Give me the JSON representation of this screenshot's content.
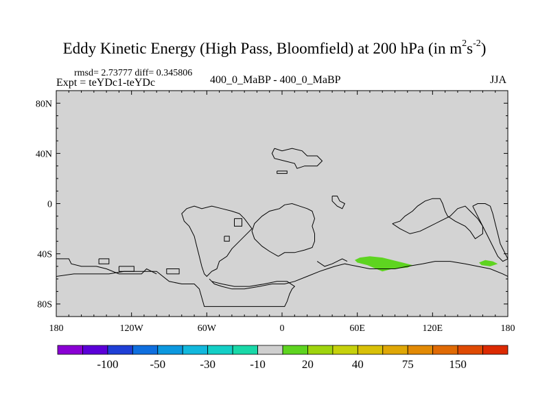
{
  "header": {
    "title_main": "Eddy Kinetic Energy (High Pass, Bloomfield) at 200 hPa (in m",
    "title_sup1": "2",
    "title_s": "s",
    "title_sup2": "-2",
    "title_close": ")",
    "rmsd": "rmsd= 2.73777 diff= 0.345806",
    "expt": "Expt = teYDc1-teYDc",
    "center_label": "400_0_MaBP - 400_0_MaBP",
    "season": "JJA"
  },
  "colors": {
    "land_fill": "#d3d3d3",
    "frame": "#000000"
  },
  "chart_data": {
    "type": "heatmap",
    "title": "Eddy Kinetic Energy (High Pass, Bloomfield) at 200 hPa (in m2s-2)",
    "xlabel": "",
    "ylabel": "",
    "xlim": [
      -180,
      180
    ],
    "ylim": [
      -90,
      90
    ],
    "x_ticks": [
      {
        "value": -180,
        "label": "180"
      },
      {
        "value": -120,
        "label": "120W"
      },
      {
        "value": -60,
        "label": "60W"
      },
      {
        "value": 0,
        "label": "0"
      },
      {
        "value": 60,
        "label": "60E"
      },
      {
        "value": 120,
        "label": "120E"
      },
      {
        "value": 180,
        "label": "180"
      }
    ],
    "y_ticks": [
      {
        "value": 80,
        "label": "80N"
      },
      {
        "value": 40,
        "label": "40N"
      },
      {
        "value": 0,
        "label": "0"
      },
      {
        "value": -40,
        "label": "40S"
      },
      {
        "value": -80,
        "label": "80S"
      }
    ],
    "colorbar": {
      "colors": [
        "#8a00d4",
        "#5b00d8",
        "#1f3fd6",
        "#0f6fdf",
        "#0c98df",
        "#12b8dd",
        "#14cfc6",
        "#19d8a8",
        "#cfcfcf",
        "#5ed420",
        "#9fd40e",
        "#c6d10c",
        "#d8c008",
        "#dfa706",
        "#e28a05",
        "#e06a04",
        "#df4a03",
        "#dc2a02"
      ],
      "labels": [
        {
          "boundary": 2,
          "text": "-100"
        },
        {
          "boundary": 4,
          "text": "-50"
        },
        {
          "boundary": 6,
          "text": "-30"
        },
        {
          "boundary": 8,
          "text": "-10"
        },
        {
          "boundary": 10,
          "text": "20"
        },
        {
          "boundary": 12,
          "text": "40"
        },
        {
          "boundary": 14,
          "text": "75"
        },
        {
          "boundary": 16,
          "text": "150"
        }
      ]
    },
    "anomalies": [
      {
        "name": "south-atlantic-indian-blob",
        "level": "10 to 20",
        "color": "#5ed420",
        "outline": [
          [
            58,
            -45
          ],
          [
            62,
            -43
          ],
          [
            70,
            -42
          ],
          [
            80,
            -43
          ],
          [
            88,
            -45
          ],
          [
            96,
            -47
          ],
          [
            104,
            -49
          ],
          [
            100,
            -51
          ],
          [
            88,
            -52
          ],
          [
            80,
            -54
          ],
          [
            75,
            -52
          ],
          [
            68,
            -49
          ],
          [
            60,
            -47
          ]
        ]
      },
      {
        "name": "south-pacific-blob",
        "level": "10 to 20",
        "color": "#5ed420",
        "outline": [
          [
            157,
            -47
          ],
          [
            162,
            -45
          ],
          [
            168,
            -46
          ],
          [
            172,
            -48
          ],
          [
            166,
            -50
          ],
          [
            159,
            -49
          ]
        ]
      }
    ],
    "coastlines": [
      [
        [
          -3,
          -42
        ],
        [
          2,
          -39
        ],
        [
          10,
          -39
        ],
        [
          18,
          -37
        ],
        [
          24,
          -35
        ],
        [
          26,
          -30
        ],
        [
          26,
          -24
        ],
        [
          24,
          -18
        ],
        [
          26,
          -12
        ],
        [
          24,
          -6
        ],
        [
          20,
          -4
        ],
        [
          14,
          -2
        ],
        [
          8,
          0
        ],
        [
          2,
          -1
        ],
        [
          -2,
          -4
        ],
        [
          -10,
          -6
        ],
        [
          -16,
          -10
        ],
        [
          -22,
          -16
        ],
        [
          -24,
          -22
        ],
        [
          -22,
          -28
        ],
        [
          -16,
          -34
        ],
        [
          -10,
          -38
        ],
        [
          -3,
          -42
        ]
      ],
      [
        [
          -34,
          -8
        ],
        [
          -30,
          -12
        ],
        [
          -24,
          -20
        ],
        [
          -32,
          -28
        ],
        [
          -40,
          -36
        ],
        [
          -44,
          -42
        ],
        [
          -50,
          -46
        ],
        [
          -52,
          -52
        ],
        [
          -56,
          -54
        ],
        [
          -60,
          -58
        ],
        [
          -62,
          -56
        ],
        [
          -64,
          -50
        ],
        [
          -66,
          -42
        ],
        [
          -68,
          -34
        ],
        [
          -70,
          -26
        ],
        [
          -74,
          -18
        ],
        [
          -78,
          -14
        ],
        [
          -80,
          -8
        ],
        [
          -76,
          -4
        ],
        [
          -70,
          -2
        ],
        [
          -64,
          -4
        ],
        [
          -56,
          -2
        ],
        [
          -48,
          -4
        ],
        [
          -40,
          -6
        ],
        [
          -34,
          -8
        ]
      ],
      [
        [
          -58,
          -60
        ],
        [
          -54,
          -64
        ],
        [
          -48,
          -66
        ],
        [
          -40,
          -68
        ],
        [
          -30,
          -68
        ],
        [
          -18,
          -66
        ],
        [
          -8,
          -64
        ],
        [
          2,
          -64
        ],
        [
          10,
          -62
        ],
        [
          20,
          -58
        ],
        [
          30,
          -54
        ],
        [
          36,
          -52
        ],
        [
          42,
          -50
        ],
        [
          50,
          -48
        ],
        [
          60,
          -50
        ],
        [
          70,
          -52
        ],
        [
          80,
          -52
        ],
        [
          90,
          -52
        ],
        [
          100,
          -50
        ],
        [
          112,
          -48
        ],
        [
          122,
          -46
        ],
        [
          134,
          -46
        ],
        [
          146,
          -48
        ],
        [
          156,
          -50
        ],
        [
          166,
          -52
        ],
        [
          176,
          -56
        ],
        [
          180,
          -58
        ],
        [
          180,
          -90
        ],
        [
          -180,
          -90
        ],
        [
          -180,
          -58
        ],
        [
          -166,
          -56
        ],
        [
          -150,
          -56
        ],
        [
          -138,
          -56
        ],
        [
          -126,
          -54
        ],
        [
          -112,
          -54
        ],
        [
          -100,
          -54
        ],
        [
          -90,
          -62
        ],
        [
          -80,
          -64
        ],
        [
          -70,
          -64
        ],
        [
          -66,
          -68
        ],
        [
          -62,
          -82
        ],
        [
          2,
          -82
        ],
        [
          4,
          -78
        ],
        [
          6,
          -72
        ],
        [
          8,
          -68
        ],
        [
          10,
          -66
        ],
        [
          4,
          -62
        ],
        [
          -4,
          -62
        ],
        [
          -14,
          -64
        ],
        [
          -26,
          -66
        ],
        [
          -38,
          -66
        ],
        [
          -48,
          -64
        ],
        [
          -56,
          -62
        ],
        [
          -58,
          -60
        ]
      ],
      [
        [
          88,
          -16
        ],
        [
          94,
          -14
        ],
        [
          98,
          -10
        ],
        [
          104,
          -6
        ],
        [
          108,
          -2
        ],
        [
          114,
          2
        ],
        [
          120,
          4
        ],
        [
          126,
          4
        ],
        [
          128,
          0
        ],
        [
          130,
          -6
        ],
        [
          132,
          -10
        ],
        [
          138,
          -14
        ],
        [
          146,
          -18
        ],
        [
          150,
          -22
        ],
        [
          154,
          -28
        ],
        [
          160,
          -24
        ],
        [
          160,
          -18
        ],
        [
          156,
          -12
        ],
        [
          150,
          -6
        ],
        [
          146,
          -2
        ],
        [
          140,
          -4
        ],
        [
          134,
          -10
        ],
        [
          126,
          -14
        ],
        [
          118,
          -18
        ],
        [
          110,
          -22
        ],
        [
          102,
          -24
        ],
        [
          94,
          -20
        ],
        [
          88,
          -16
        ]
      ],
      [
        [
          152,
          -2
        ],
        [
          156,
          0
        ],
        [
          162,
          0
        ],
        [
          166,
          -2
        ],
        [
          168,
          -8
        ],
        [
          170,
          -16
        ],
        [
          172,
          -24
        ],
        [
          174,
          -32
        ],
        [
          178,
          -40
        ],
        [
          180,
          -44
        ],
        [
          176,
          -46
        ],
        [
          172,
          -42
        ],
        [
          168,
          -34
        ],
        [
          164,
          -26
        ],
        [
          160,
          -18
        ],
        [
          156,
          -10
        ],
        [
          152,
          -2
        ]
      ],
      [
        [
          -38,
          -12
        ],
        [
          -32,
          -12
        ],
        [
          -32,
          -18
        ],
        [
          -38,
          -18
        ],
        [
          -38,
          -12
        ]
      ],
      [
        [
          -46,
          -26
        ],
        [
          -42,
          -26
        ],
        [
          -42,
          -30
        ],
        [
          -46,
          -30
        ],
        [
          -46,
          -26
        ]
      ],
      [
        [
          -6,
          44
        ],
        [
          0,
          42
        ],
        [
          8,
          44
        ],
        [
          16,
          42
        ],
        [
          20,
          38
        ],
        [
          28,
          38
        ],
        [
          32,
          34
        ],
        [
          28,
          30
        ],
        [
          18,
          30
        ],
        [
          12,
          28
        ],
        [
          10,
          32
        ],
        [
          2,
          34
        ],
        [
          -6,
          36
        ],
        [
          -8,
          40
        ],
        [
          -6,
          44
        ]
      ],
      [
        [
          -4,
          26
        ],
        [
          4,
          26
        ],
        [
          4,
          24
        ],
        [
          -4,
          24
        ],
        [
          -4,
          26
        ]
      ],
      [
        [
          40,
          6
        ],
        [
          44,
          6
        ],
        [
          46,
          2
        ],
        [
          50,
          0
        ],
        [
          48,
          -4
        ],
        [
          44,
          -2
        ],
        [
          40,
          2
        ],
        [
          40,
          6
        ]
      ],
      [
        [
          -180,
          -44
        ],
        [
          -170,
          -44
        ],
        [
          -168,
          -48
        ],
        [
          -160,
          -50
        ],
        [
          -148,
          -50
        ],
        [
          -140,
          -52
        ],
        [
          -130,
          -56
        ],
        [
          -112,
          -56
        ],
        [
          -108,
          -52
        ],
        [
          -100,
          -56
        ]
      ],
      [
        [
          -146,
          -44
        ],
        [
          -138,
          -44
        ],
        [
          -138,
          -48
        ],
        [
          -146,
          -48
        ],
        [
          -146,
          -44
        ]
      ],
      [
        [
          -130,
          -50
        ],
        [
          -118,
          -50
        ],
        [
          -118,
          -54
        ],
        [
          -130,
          -54
        ],
        [
          -130,
          -50
        ]
      ],
      [
        [
          -92,
          -56
        ],
        [
          -82,
          -56
        ],
        [
          -82,
          -52
        ],
        [
          -92,
          -52
        ],
        [
          -92,
          -56
        ]
      ],
      [
        [
          28,
          -46
        ],
        [
          34,
          -50
        ],
        [
          40,
          -48
        ],
        [
          44,
          -46
        ],
        [
          48,
          -44
        ],
        [
          52,
          -46
        ]
      ]
    ]
  }
}
